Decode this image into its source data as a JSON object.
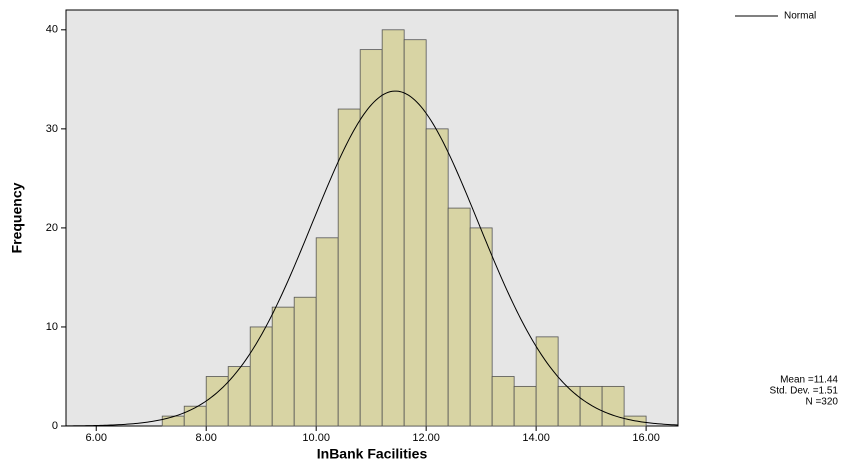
{
  "chart_data": {
    "type": "histogram",
    "x_label": "InBank Facilities",
    "y_label": "Frequency",
    "bins": [
      7.2,
      7.6,
      8.0,
      8.4,
      8.8,
      9.2,
      9.6,
      10.0,
      10.4,
      10.8,
      11.2,
      11.6,
      12.0,
      12.4,
      12.8,
      13.2,
      13.6,
      14.0,
      14.4,
      14.8,
      15.2,
      15.6,
      16.0
    ],
    "values": [
      1,
      2,
      5,
      6,
      10,
      12,
      13,
      19,
      32,
      38,
      40,
      39,
      30,
      22,
      20,
      5,
      4,
      9,
      4,
      4,
      4,
      1
    ],
    "color": "#d8d4a4",
    "xlim": [
      5.45,
      16.58
    ],
    "ylim": [
      0,
      42
    ],
    "xticks": [
      {
        "value": 6,
        "label": "6.00"
      },
      {
        "value": 8,
        "label": "8.00"
      },
      {
        "value": 10,
        "label": "10.00"
      },
      {
        "value": 12,
        "label": "12.00"
      },
      {
        "value": 14,
        "label": "14.00"
      },
      {
        "value": 16,
        "label": "16.00"
      }
    ],
    "yticks": [
      0,
      10,
      20,
      30,
      40
    ],
    "normal": {
      "name": "Normal",
      "mean": 11.44,
      "std_dev": 1.51,
      "n": 320
    },
    "stats_labels": [
      "Mean =11.44",
      "Std. Dev. =1.51",
      "N =320"
    ],
    "legend_position": "top-right"
  }
}
